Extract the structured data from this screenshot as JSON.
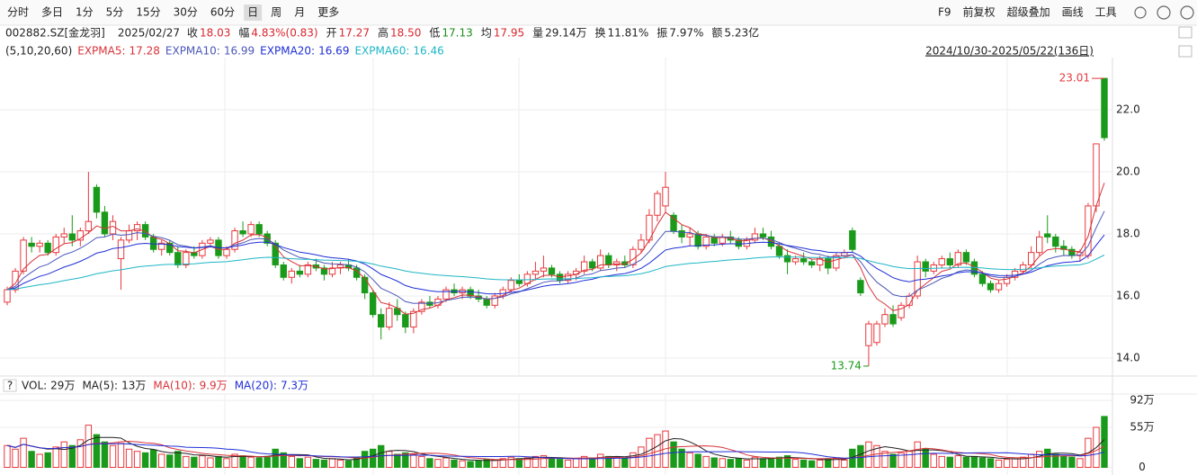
{
  "toolbar": {
    "left": [
      "分时",
      "多日",
      "1分",
      "5分",
      "15分",
      "30分",
      "60分",
      "日",
      "周",
      "月",
      "更多"
    ],
    "active": "日",
    "right": [
      "F9",
      "前复权",
      "超级叠加",
      "画线",
      "工具"
    ]
  },
  "quote": {
    "code": "002882.SZ[金龙羽]",
    "date": "2025/02/27",
    "fields": [
      {
        "label": "收",
        "value": "18.03",
        "color": "#d8262d"
      },
      {
        "label": "幅",
        "value": "4.83%(0.83)",
        "color": "#d8262d"
      },
      {
        "label": "开",
        "value": "17.27",
        "color": "#d8262d"
      },
      {
        "label": "高",
        "value": "18.50",
        "color": "#d8262d"
      },
      {
        "label": "低",
        "value": "17.13",
        "color": "#1a8f1a"
      },
      {
        "label": "均",
        "value": "17.95",
        "color": "#d8262d"
      },
      {
        "label": "量",
        "value": "29.14万",
        "color": "#222"
      },
      {
        "label": "换",
        "value": "11.81%",
        "color": "#222"
      },
      {
        "label": "振",
        "value": "7.97%",
        "color": "#222"
      },
      {
        "label": "额",
        "value": "5.23亿",
        "color": "#222"
      }
    ]
  },
  "indicator": {
    "params": "(5,10,20,60)",
    "items": [
      {
        "name": "EXPMA5:",
        "value": "17.28",
        "color": "#d8343a"
      },
      {
        "name": "EXPMA10:",
        "value": "16.99",
        "color": "#4b57b8"
      },
      {
        "name": "EXPMA20:",
        "value": "16.69",
        "color": "#1f2fd6"
      },
      {
        "name": "EXPMA60:",
        "value": "16.46",
        "color": "#1eb6c6"
      }
    ]
  },
  "range": "2024/10/30-2025/05/22(136日)",
  "volume_legend": {
    "items": [
      {
        "name": "VOL:",
        "value": "29万",
        "color": "#222"
      },
      {
        "name": "MA(5):",
        "value": "13万",
        "color": "#222"
      },
      {
        "name": "MA(10):",
        "value": "9.9万",
        "color": "#d8343a"
      },
      {
        "name": "MA(20):",
        "value": "7.3万",
        "color": "#1f2fd6"
      }
    ]
  },
  "chart_data": {
    "type": "candlestick",
    "up_color": "#e8383d",
    "down_color": "#1a9a1a",
    "open": [
      15.8,
      16.2,
      16.8,
      17.7,
      17.6,
      17.7,
      17.4,
      17.9,
      18.0,
      17.8,
      18.1,
      19.5,
      18.7,
      18.0,
      17.2,
      17.8,
      18.1,
      18.3,
      17.9,
      17.5,
      17.7,
      17.4,
      17.0,
      17.4,
      17.3,
      17.7,
      17.8,
      17.3,
      17.5,
      18.1,
      18.0,
      18.3,
      18.0,
      17.7,
      17.0,
      16.6,
      16.8,
      16.7,
      17.0,
      16.9,
      16.7,
      16.9,
      17.0,
      16.9,
      16.6,
      16.1,
      15.4,
      15.0,
      15.6,
      15.4,
      15.0,
      15.5,
      15.8,
      15.7,
      15.9,
      16.2,
      16.1,
      16.2,
      16.0,
      15.9,
      15.7,
      16.0,
      16.2,
      16.5,
      16.4,
      16.7,
      16.8,
      16.9,
      16.7,
      16.5,
      16.7,
      16.8,
      17.1,
      16.9,
      17.3,
      17.0,
      17.1,
      17.0,
      17.5,
      17.8,
      18.6,
      18.9,
      18.6,
      18.1,
      17.9,
      18.0,
      17.6,
      17.9,
      17.7,
      17.9,
      17.8,
      17.6,
      17.8,
      18.0,
      17.9,
      17.6,
      17.3,
      17.1,
      17.2,
      17.1,
      17.0,
      17.2,
      16.9,
      17.3,
      18.1,
      16.5,
      14.4,
      14.5,
      15.1,
      15.4,
      15.3,
      15.7,
      16.0,
      17.1,
      16.8,
      17.0,
      17.2,
      17.0,
      17.4,
      17.1,
      16.7,
      16.4,
      16.2,
      16.4,
      16.6,
      16.8,
      17.0,
      17.4,
      18.0,
      17.9,
      17.6,
      17.5,
      17.3,
      17.3,
      18.9,
      23.01
    ],
    "high": [
      16.3,
      16.9,
      17.9,
      17.9,
      17.8,
      17.8,
      18.0,
      18.2,
      18.6,
      18.2,
      20.0,
      19.6,
      18.9,
      18.6,
      17.9,
      18.3,
      18.4,
      18.4,
      18.0,
      17.8,
      17.8,
      17.6,
      17.5,
      17.6,
      17.8,
      17.9,
      17.9,
      17.6,
      18.2,
      18.4,
      18.4,
      18.4,
      18.1,
      17.8,
      17.1,
      16.9,
      17.0,
      17.1,
      17.2,
      17.0,
      17.1,
      17.1,
      17.2,
      17.0,
      16.7,
      16.2,
      15.6,
      15.8,
      15.9,
      15.5,
      15.6,
      15.9,
      16.0,
      16.0,
      16.3,
      16.4,
      16.3,
      16.3,
      16.2,
      16.0,
      16.1,
      16.3,
      16.6,
      16.7,
      16.8,
      17.1,
      17.3,
      17.0,
      16.8,
      16.8,
      16.9,
      17.3,
      17.2,
      17.5,
      17.4,
      17.2,
      17.3,
      17.6,
      18.0,
      18.8,
      19.4,
      20.0,
      18.7,
      18.3,
      18.2,
      18.1,
      18.0,
      18.0,
      18.0,
      18.1,
      17.9,
      17.9,
      18.2,
      18.2,
      18.1,
      17.7,
      17.5,
      17.3,
      17.4,
      17.2,
      17.3,
      17.3,
      17.4,
      17.5,
      18.2,
      16.6,
      15.2,
      15.2,
      15.6,
      15.7,
      15.8,
      16.1,
      17.3,
      17.2,
      17.1,
      17.3,
      17.4,
      17.5,
      17.5,
      17.2,
      16.8,
      16.5,
      16.5,
      16.7,
      16.9,
      17.1,
      17.6,
      18.1,
      18.6,
      18.0,
      17.8,
      17.6,
      17.5,
      19.0,
      20.9,
      23.01
    ],
    "low": [
      15.7,
      16.1,
      16.7,
      17.4,
      17.4,
      17.3,
      17.3,
      17.7,
      17.6,
      17.6,
      18.0,
      18.5,
      17.9,
      17.8,
      16.2,
      17.7,
      17.8,
      17.8,
      17.4,
      17.3,
      17.3,
      16.9,
      16.9,
      17.2,
      17.2,
      17.6,
      17.2,
      17.2,
      17.4,
      17.9,
      17.9,
      17.9,
      17.6,
      16.9,
      16.5,
      16.4,
      16.6,
      16.6,
      16.8,
      16.5,
      16.6,
      16.7,
      16.8,
      16.5,
      15.9,
      15.3,
      14.6,
      14.9,
      15.2,
      14.8,
      14.8,
      15.4,
      15.6,
      15.6,
      15.8,
      16.0,
      15.9,
      15.9,
      15.8,
      15.6,
      15.6,
      15.9,
      16.1,
      16.3,
      16.3,
      16.5,
      16.6,
      16.6,
      16.4,
      16.4,
      16.5,
      16.7,
      16.8,
      16.8,
      16.9,
      16.8,
      16.9,
      16.9,
      17.4,
      17.7,
      18.4,
      18.7,
      18.0,
      17.7,
      17.6,
      17.5,
      17.5,
      17.6,
      17.6,
      17.7,
      17.5,
      17.5,
      17.7,
      17.8,
      17.5,
      17.2,
      16.7,
      17.0,
      17.0,
      16.9,
      16.8,
      16.7,
      16.8,
      17.2,
      17.4,
      16.0,
      13.74,
      14.4,
      15.0,
      15.0,
      15.2,
      15.6,
      15.9,
      16.6,
      16.7,
      16.9,
      16.9,
      16.9,
      17.0,
      16.6,
      16.3,
      16.1,
      16.1,
      16.3,
      16.5,
      16.7,
      16.9,
      17.3,
      17.7,
      17.4,
      17.3,
      17.2,
      17.1,
      17.2,
      18.7,
      21.0
    ],
    "close": [
      16.2,
      16.8,
      17.8,
      17.6,
      17.7,
      17.4,
      17.9,
      18.0,
      17.8,
      18.1,
      18.4,
      18.7,
      18.0,
      18.4,
      17.8,
      18.1,
      18.3,
      17.9,
      17.5,
      17.7,
      17.4,
      17.0,
      17.4,
      17.3,
      17.7,
      17.8,
      17.3,
      17.5,
      18.1,
      18.0,
      18.3,
      18.0,
      17.7,
      17.0,
      16.6,
      16.8,
      16.7,
      17.0,
      16.9,
      16.7,
      16.9,
      17.0,
      16.9,
      16.6,
      16.1,
      15.4,
      15.0,
      15.6,
      15.4,
      15.0,
      15.5,
      15.8,
      15.7,
      15.9,
      16.2,
      16.1,
      16.2,
      16.0,
      15.9,
      15.7,
      16.0,
      16.2,
      16.5,
      16.4,
      16.7,
      16.8,
      16.9,
      16.7,
      16.5,
      16.7,
      16.8,
      17.1,
      16.9,
      17.3,
      17.0,
      17.1,
      17.0,
      17.5,
      17.8,
      18.6,
      19.3,
      19.5,
      18.1,
      17.9,
      18.0,
      17.6,
      17.9,
      17.7,
      17.9,
      17.8,
      17.6,
      17.8,
      18.0,
      17.9,
      17.6,
      17.3,
      17.1,
      17.2,
      17.1,
      17.0,
      17.2,
      16.9,
      17.3,
      17.4,
      17.5,
      16.1,
      15.1,
      15.1,
      15.4,
      15.1,
      15.7,
      16.0,
      17.1,
      16.8,
      17.0,
      17.2,
      17.0,
      17.4,
      17.1,
      16.7,
      16.4,
      16.2,
      16.4,
      16.6,
      16.8,
      17.0,
      17.4,
      17.9,
      17.9,
      17.6,
      17.5,
      17.3,
      17.4,
      18.9,
      20.9,
      21.1
    ],
    "volume": [
      30,
      25,
      40,
      22,
      18,
      20,
      28,
      35,
      30,
      38,
      58,
      45,
      35,
      30,
      33,
      25,
      22,
      20,
      24,
      18,
      17,
      22,
      15,
      14,
      16,
      13,
      15,
      12,
      18,
      16,
      14,
      13,
      15,
      25,
      20,
      15,
      12,
      14,
      11,
      10,
      12,
      10,
      9,
      14,
      22,
      25,
      30,
      22,
      18,
      20,
      18,
      15,
      12,
      11,
      13,
      10,
      9,
      8,
      9,
      11,
      10,
      12,
      14,
      12,
      13,
      15,
      16,
      12,
      11,
      10,
      12,
      15,
      13,
      18,
      15,
      14,
      13,
      20,
      28,
      40,
      45,
      50,
      35,
      25,
      20,
      18,
      15,
      13,
      12,
      11,
      12,
      10,
      14,
      12,
      13,
      14,
      16,
      11,
      10,
      9,
      10,
      12,
      13,
      10,
      25,
      30,
      35,
      30,
      22,
      18,
      20,
      22,
      35,
      25,
      18,
      15,
      14,
      16,
      14,
      15,
      13,
      12,
      10,
      11,
      12,
      14,
      18,
      22,
      25,
      18,
      15,
      14,
      12,
      40,
      55,
      70
    ],
    "ylim": [
      13.42,
      23.68
    ],
    "yticks": [
      {
        "value": 22,
        "label": "22.0"
      },
      {
        "value": 20,
        "label": "20.0"
      },
      {
        "value": 18,
        "label": "18.0"
      },
      {
        "value": 16,
        "label": "16.0"
      },
      {
        "value": 14,
        "label": "14.0"
      }
    ],
    "volume_ylim": [
      -10.5,
      100.8
    ],
    "volume_yticks": [
      {
        "value": 92,
        "label": "92万"
      },
      {
        "value": 55,
        "label": "55万"
      },
      0
    ],
    "annotations": {
      "max": "23.01",
      "min": "13.74"
    },
    "grid": true
  }
}
